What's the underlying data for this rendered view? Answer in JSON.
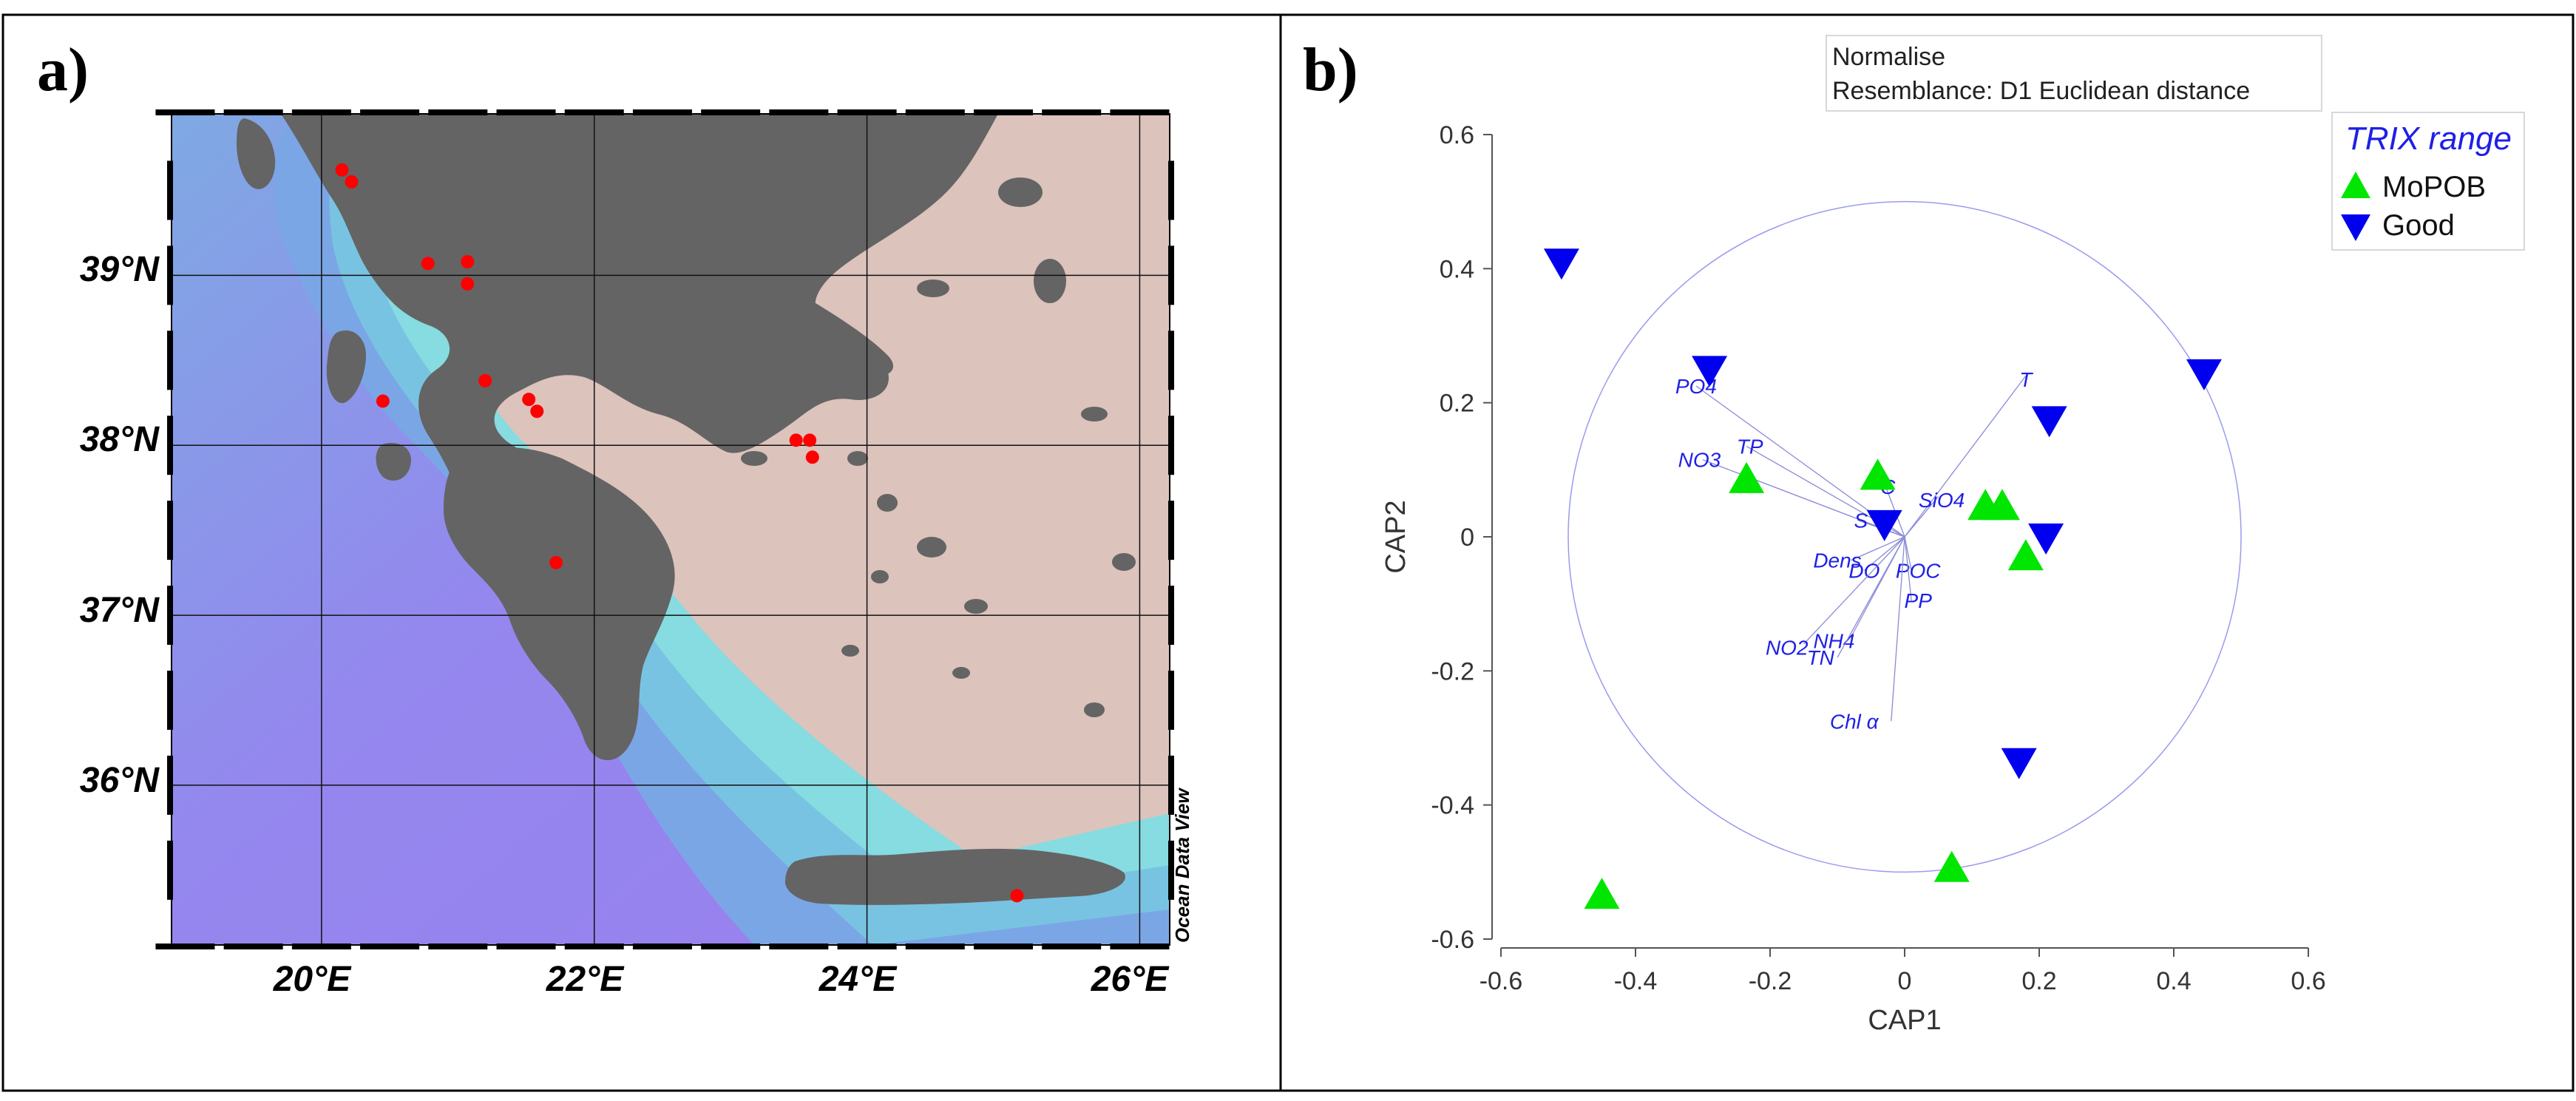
{
  "panel_a": {
    "label": "a)",
    "lon_ticks": [
      "20°E",
      "22°E",
      "24°E",
      "26°E"
    ],
    "lat_ticks": [
      "39°N",
      "38°N",
      "37°N",
      "36°N"
    ],
    "watermark": "Ocean Data View",
    "colors": {
      "land": "#646464",
      "shallow": "#dcc3bc",
      "mid_sea": "#7fd3df",
      "deep_sea": "#9487ee",
      "station": "#ff0000"
    },
    "stations": [
      {
        "lon": 20.15,
        "lat": 39.62
      },
      {
        "lon": 20.22,
        "lat": 39.55
      },
      {
        "lon": 20.78,
        "lat": 39.07
      },
      {
        "lon": 21.07,
        "lat": 39.08
      },
      {
        "lon": 21.07,
        "lat": 38.95
      },
      {
        "lon": 20.45,
        "lat": 38.26
      },
      {
        "lon": 21.2,
        "lat": 38.38
      },
      {
        "lon": 21.52,
        "lat": 38.27
      },
      {
        "lon": 21.58,
        "lat": 38.2
      },
      {
        "lon": 21.72,
        "lat": 37.31
      },
      {
        "lon": 23.48,
        "lat": 38.03
      },
      {
        "lon": 23.58,
        "lat": 38.03
      },
      {
        "lon": 23.6,
        "lat": 37.93
      },
      {
        "lon": 25.1,
        "lat": 35.35
      }
    ]
  },
  "panel_b": {
    "label": "b)",
    "info_box": {
      "line1": "Normalise",
      "line2": "Resemblance: D1 Euclidean distance"
    },
    "legend": {
      "title": "TRIX range",
      "items": [
        {
          "label": "MoPOB",
          "marker": "triangle-up",
          "color": "#00e600"
        },
        {
          "label": "Good",
          "marker": "triangle-down",
          "color": "#0000ee"
        }
      ]
    }
  },
  "chart_data": {
    "type": "scatter",
    "title": "",
    "xlabel": "CAP1",
    "ylabel": "CAP2",
    "xlim": [
      -0.6,
      0.6
    ],
    "ylim": [
      -0.6,
      0.6
    ],
    "xticks": [
      "-0.6",
      "-0.4",
      "-0.2",
      "0",
      "0.2",
      "0.4",
      "0.6"
    ],
    "yticks": [
      "0.6",
      "0.4",
      "0.2",
      "0",
      "-0.2",
      "-0.4",
      "-0.6"
    ],
    "circle_radius": 0.5,
    "series": [
      {
        "name": "MoPOB",
        "color": "#00e600",
        "points": [
          [
            -0.235,
            0.085
          ],
          [
            -0.04,
            0.09
          ],
          [
            0.12,
            0.045
          ],
          [
            0.145,
            0.045
          ],
          [
            0.18,
            -0.03
          ],
          [
            0.07,
            -0.495
          ],
          [
            -0.45,
            -0.535
          ]
        ]
      },
      {
        "name": "Good",
        "color": "#0000ee",
        "points": [
          [
            -0.51,
            0.41
          ],
          [
            -0.29,
            0.25
          ],
          [
            -0.03,
            0.02
          ],
          [
            0.215,
            0.175
          ],
          [
            0.21,
            0.0
          ],
          [
            0.445,
            0.245
          ],
          [
            0.17,
            -0.335
          ]
        ]
      }
    ],
    "vectors": [
      {
        "label": "PO4",
        "x": -0.31,
        "y": 0.225,
        "tx": -0.31,
        "ty": 0.225
      },
      {
        "label": "TP",
        "x": -0.235,
        "y": 0.135,
        "tx": -0.23,
        "ty": 0.135
      },
      {
        "label": "NO3",
        "x": -0.3,
        "y": 0.115,
        "tx": -0.305,
        "ty": 0.115
      },
      {
        "label": "C",
        "x": -0.03,
        "y": 0.08,
        "tx": -0.025,
        "ty": 0.075
      },
      {
        "label": "S",
        "x": -0.07,
        "y": 0.025,
        "tx": -0.065,
        "ty": 0.025
      },
      {
        "label": "T",
        "x": 0.18,
        "y": 0.24,
        "tx": 0.18,
        "ty": 0.235
      },
      {
        "label": "SiO4",
        "x": 0.05,
        "y": 0.06,
        "tx": 0.055,
        "ty": 0.055
      },
      {
        "label": "Dens",
        "x": -0.08,
        "y": -0.035,
        "tx": -0.1,
        "ty": -0.035
      },
      {
        "label": "DO",
        "x": -0.06,
        "y": -0.05,
        "tx": -0.06,
        "ty": -0.05
      },
      {
        "label": "POC",
        "x": 0.01,
        "y": -0.05,
        "tx": 0.02,
        "ty": -0.05
      },
      {
        "label": "PP",
        "x": 0.01,
        "y": -0.095,
        "tx": 0.02,
        "ty": -0.095
      },
      {
        "label": "NH4",
        "x": -0.08,
        "y": -0.15,
        "tx": -0.105,
        "ty": -0.155
      },
      {
        "label": "NO2",
        "x": -0.15,
        "y": -0.16,
        "tx": -0.175,
        "ty": -0.165
      },
      {
        "label": "TN",
        "x": -0.1,
        "y": -0.18,
        "tx": -0.125,
        "ty": -0.18
      },
      {
        "label": "Chl α",
        "x": -0.02,
        "y": -0.275,
        "tx": -0.075,
        "ty": -0.275
      }
    ]
  }
}
